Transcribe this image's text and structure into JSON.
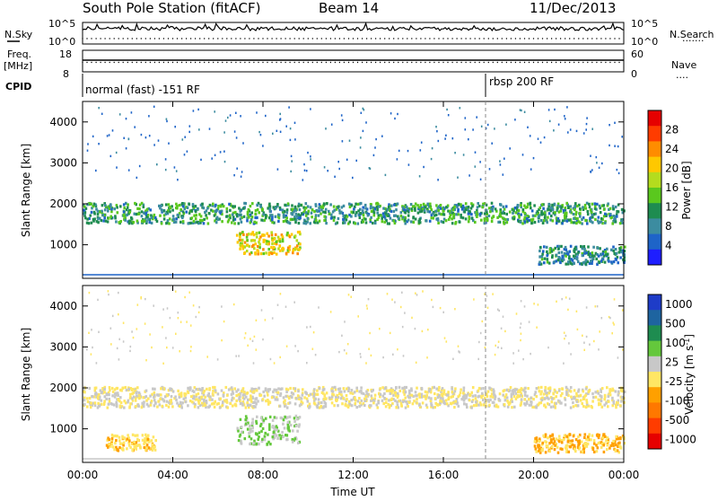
{
  "header": {
    "station": "South Pole Station (fitACF)",
    "beam": "Beam 14",
    "date": "11/Dec/2013"
  },
  "sidebar_left": {
    "nsky": "N.Sky",
    "freq": "Freq.",
    "mhz": "[MHz]",
    "cpid": "CPID"
  },
  "sidebar_right": {
    "nsearch": "N.Search",
    "nave": "Nave"
  },
  "status_axes": {
    "sky_ticks": [
      "10^5",
      "10^0"
    ],
    "freq_ticks": [
      "18",
      "8"
    ],
    "search_ticks": [
      "10^5",
      "10^0"
    ],
    "nave_ticks": [
      "60",
      "0"
    ]
  },
  "cpid_segments": [
    {
      "label": "normal (fast) -151 RF"
    },
    {
      "label": "rbsp 200 RF"
    }
  ],
  "colors": {
    "power": [
      "#1e1eff",
      "#1e64c8",
      "#3c8ca0",
      "#1e8c50",
      "#5ac81e",
      "#b4dc1e",
      "#ffc800",
      "#ff8c00",
      "#ff3c00",
      "#e60000"
    ],
    "velocity": [
      "#e60000",
      "#ff3c00",
      "#ff7800",
      "#ffa000",
      "#ffe664",
      "#c8c8c8",
      "#64c83c",
      "#1e8c50",
      "#1e64a0",
      "#1e3cc8"
    ]
  },
  "chart_data": [
    {
      "type": "heatmap",
      "name": "power",
      "title": "",
      "xlabel": "",
      "ylabel": "Slant Range [km]",
      "xlim": [
        "00:00",
        "00:00"
      ],
      "ylim": [
        180,
        4500
      ],
      "x_ticks": [
        "00:00",
        "04:00",
        "08:00",
        "12:00",
        "16:00",
        "20:00",
        "00:00"
      ],
      "y_ticks": [
        "1000",
        "2000",
        "3000",
        "4000"
      ],
      "colorbar": {
        "label": "Power [dB]",
        "ticks": [
          "4",
          "8",
          "12",
          "16",
          "20",
          "24",
          "28"
        ],
        "range": [
          0,
          30
        ]
      },
      "features": [
        {
          "time_start_h": 0.0,
          "time_end_h": 24.0,
          "range_km": [
            1550,
            2050
          ],
          "value": 10
        },
        {
          "time_start_h": 6.8,
          "time_end_h": 9.6,
          "range_km": [
            800,
            1350
          ],
          "value": 18
        },
        {
          "time_start_h": 20.2,
          "time_end_h": 24.0,
          "range_km": [
            550,
            1000
          ],
          "value": 8
        }
      ]
    },
    {
      "type": "heatmap",
      "name": "velocity",
      "title": "",
      "xlabel": "Time UT",
      "ylabel": "Slant Range [km]",
      "xlim": [
        "00:00",
        "00:00"
      ],
      "ylim": [
        180,
        4500
      ],
      "x_ticks": [
        "00:00",
        "04:00",
        "08:00",
        "12:00",
        "16:00",
        "20:00",
        "00:00"
      ],
      "y_ticks": [
        "1000",
        "2000",
        "3000",
        "4000"
      ],
      "colorbar": {
        "label": "Velocity [m s^-1]",
        "ticks": [
          "1000",
          "500",
          "100",
          "25",
          "-25",
          "-100",
          "-500",
          "-1000"
        ],
        "range": [
          -1000,
          1000
        ]
      },
      "features": [
        {
          "time_start_h": 0.0,
          "time_end_h": 24.0,
          "range_km": [
            1550,
            2050
          ],
          "value": 0
        },
        {
          "time_start_h": 6.8,
          "time_end_h": 9.6,
          "range_km": [
            650,
            1350
          ],
          "value": 200
        },
        {
          "time_start_h": 1.0,
          "time_end_h": 3.2,
          "range_km": [
            500,
            900
          ],
          "value": -150
        },
        {
          "time_start_h": 20.0,
          "time_end_h": 24.0,
          "range_km": [
            450,
            900
          ],
          "value": -200
        }
      ]
    }
  ]
}
